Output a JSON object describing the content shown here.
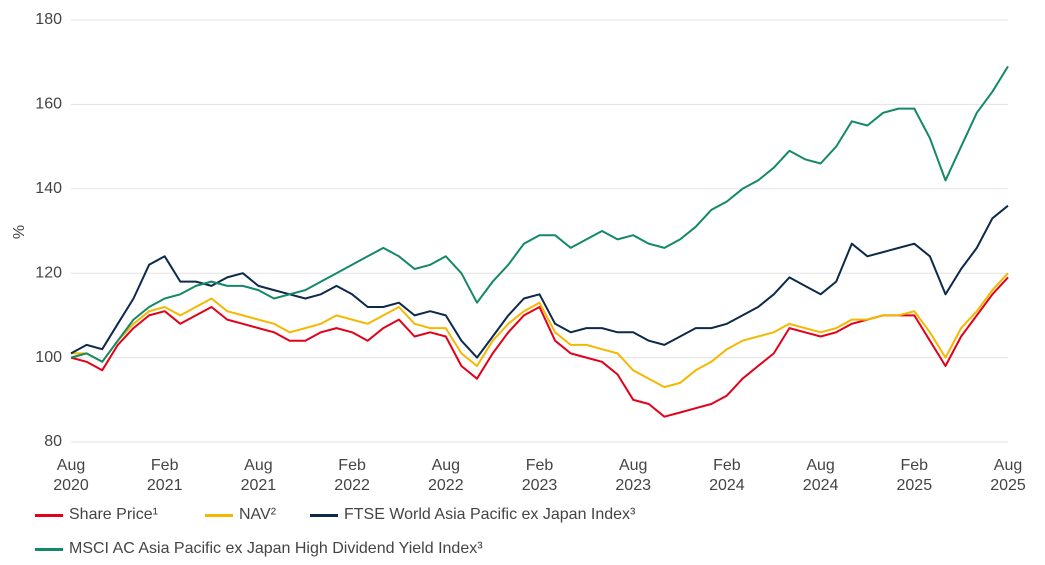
{
  "chart_data": {
    "type": "line",
    "ylabel": "%",
    "categories": [
      "Aug\n2020",
      null,
      null,
      null,
      null,
      null,
      "Feb\n2021",
      null,
      null,
      null,
      null,
      null,
      "Aug\n2021",
      null,
      null,
      null,
      null,
      null,
      "Feb\n2022",
      null,
      null,
      null,
      null,
      null,
      "Aug\n2022",
      null,
      null,
      null,
      null,
      null,
      "Feb\n2023",
      null,
      null,
      null,
      null,
      null,
      "Aug\n2023",
      null,
      null,
      null,
      null,
      null,
      "Feb\n2024",
      null,
      null,
      null,
      null,
      null,
      "Aug\n2024",
      null,
      null,
      null,
      null,
      null,
      "Feb\n2025",
      null,
      null,
      null,
      null,
      null,
      "Aug\n2025"
    ],
    "series": [
      {
        "name": "Share Price¹",
        "color": "#e2001a",
        "values": [
          100,
          99,
          97,
          103,
          107,
          110,
          111,
          108,
          110,
          112,
          109,
          108,
          107,
          106,
          104,
          104,
          106,
          107,
          106,
          104,
          107,
          109,
          105,
          106,
          105,
          98,
          95,
          101,
          106,
          110,
          112,
          104,
          101,
          100,
          99,
          96,
          90,
          89,
          86,
          87,
          88,
          89,
          91,
          95,
          98,
          101,
          107,
          106,
          105,
          106,
          108,
          109,
          110,
          110,
          110,
          104,
          98,
          105,
          110,
          115,
          119
        ]
      },
      {
        "name": "NAV²",
        "color": "#f5b800",
        "values": [
          101,
          101,
          99,
          104,
          108,
          111,
          112,
          110,
          112,
          114,
          111,
          110,
          109,
          108,
          106,
          107,
          108,
          110,
          109,
          108,
          110,
          112,
          108,
          107,
          107,
          101,
          98,
          104,
          108,
          111,
          113,
          106,
          103,
          103,
          102,
          101,
          97,
          95,
          93,
          94,
          97,
          99,
          102,
          104,
          105,
          106,
          108,
          107,
          106,
          107,
          109,
          109,
          110,
          110,
          111,
          106,
          100,
          107,
          111,
          116,
          120
        ]
      },
      {
        "name": "FTSE World Asia Pacific ex Japan Index³",
        "color": "#0d2a4a",
        "values": [
          101,
          103,
          102,
          108,
          114,
          122,
          124,
          118,
          118,
          117,
          119,
          120,
          117,
          116,
          115,
          114,
          115,
          117,
          115,
          112,
          112,
          113,
          110,
          111,
          110,
          104,
          100,
          105,
          110,
          114,
          115,
          108,
          106,
          107,
          107,
          106,
          106,
          104,
          103,
          105,
          107,
          107,
          108,
          110,
          112,
          115,
          119,
          117,
          115,
          118,
          127,
          124,
          125,
          126,
          127,
          124,
          115,
          121,
          126,
          133,
          136
        ]
      },
      {
        "name": "MSCI AC Asia Pacific ex Japan High Dividend Yield Index³",
        "color": "#14896a",
        "values": [
          100,
          101,
          99,
          104,
          109,
          112,
          114,
          115,
          117,
          118,
          117,
          117,
          116,
          114,
          115,
          116,
          118,
          120,
          122,
          124,
          126,
          124,
          121,
          122,
          124,
          120,
          113,
          118,
          122,
          127,
          129,
          129,
          126,
          128,
          130,
          128,
          129,
          127,
          126,
          128,
          131,
          135,
          137,
          140,
          142,
          145,
          149,
          147,
          146,
          150,
          156,
          155,
          158,
          159,
          159,
          152,
          142,
          150,
          158,
          163,
          169
        ]
      }
    ],
    "ylim": [
      80,
      180
    ],
    "yticks": [
      80,
      100,
      120,
      140,
      160,
      180
    ],
    "grid": true
  }
}
